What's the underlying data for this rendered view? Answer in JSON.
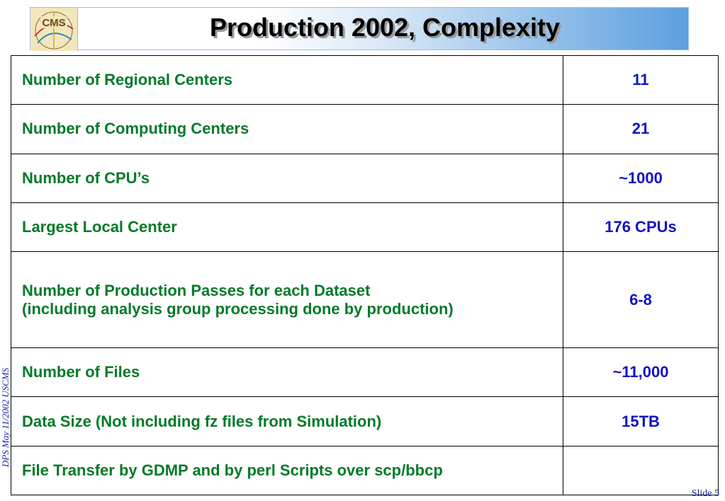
{
  "header": {
    "title": "Production 2002, Complexity",
    "logo_text": "CMS"
  },
  "table": {
    "rows": [
      {
        "label": "Number of Regional Centers",
        "value": "11"
      },
      {
        "label": "Number of Computing Centers",
        "value": "21"
      },
      {
        "label": "Number of CPU’s",
        "value": "~1000"
      },
      {
        "label": "Largest Local Center",
        "value": "176 CPUs"
      },
      {
        "label_line1": "Number of Production Passes for each Dataset",
        "label_line2": "(including analysis group processing done by production)",
        "value": "6-8"
      },
      {
        "label": "Number of Files",
        "value": "~11,000"
      },
      {
        "label": "Data Size (Not including fz files from Simulation)",
        "value": "15TB"
      },
      {
        "label": "File Transfer by GDMP and by  perl Scripts over scp/bbcp",
        "value": ""
      }
    ]
  },
  "footer": {
    "side_note": "DPS May 11/2002 USCMS",
    "slide_number": "Slide 5"
  },
  "colors": {
    "label_text": "#047a2a",
    "value_text": "#1212c4"
  }
}
